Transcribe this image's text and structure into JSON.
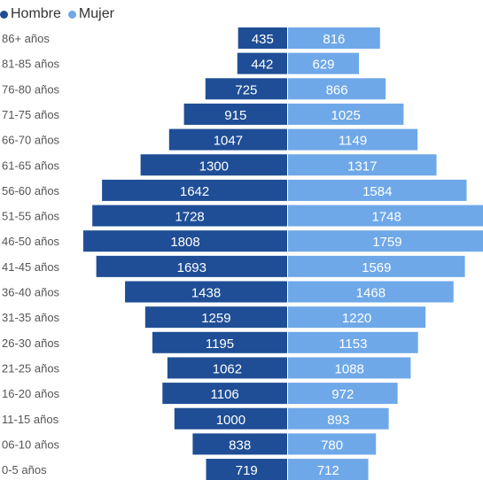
{
  "chart_data": {
    "type": "bar",
    "orientation": "horizontal",
    "layout": "population-pyramid",
    "categories": [
      "86+ años",
      "81-85 años",
      "76-80 años",
      "71-75 años",
      "66-70 años",
      "61-65 años",
      "56-60 años",
      "51-55 años",
      "46-50 años",
      "41-45 años",
      "36-40 años",
      "31-35 años",
      "26-30 años",
      "21-25 años",
      "16-20 años",
      "11-15 años",
      "06-10 años",
      "0-5 años"
    ],
    "series": [
      {
        "name": "Hombre",
        "color": "#1F4E96",
        "side": "left",
        "values": [
          435,
          442,
          725,
          915,
          1047,
          1300,
          1642,
          1728,
          1808,
          1693,
          1438,
          1259,
          1195,
          1062,
          1106,
          1000,
          838,
          719
        ]
      },
      {
        "name": "Mujer",
        "color": "#6FA8E8",
        "side": "right",
        "values": [
          816,
          629,
          866,
          1025,
          1149,
          1317,
          1584,
          1748,
          1759,
          1569,
          1468,
          1220,
          1153,
          1088,
          972,
          893,
          780,
          712
        ]
      }
    ],
    "legend": {
      "position": "top-left",
      "marker": "●"
    },
    "data_labels": true,
    "grid": false,
    "xlim": [
      -1808,
      1808
    ]
  }
}
